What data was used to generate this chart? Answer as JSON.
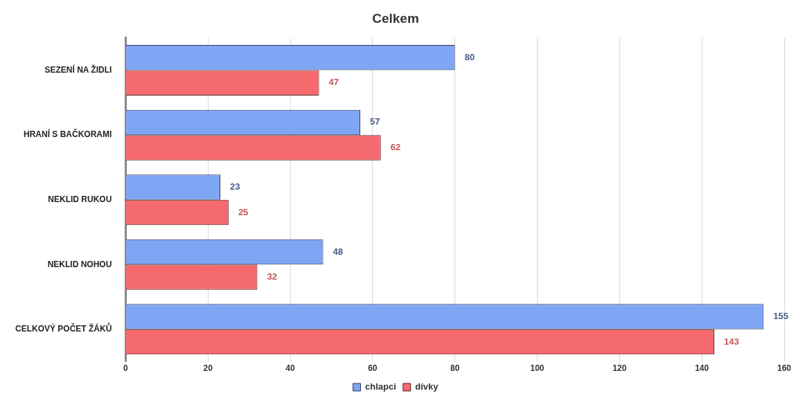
{
  "chart_data": {
    "type": "bar",
    "title": "Celkem",
    "orientation": "horizontal",
    "categories": [
      "SEZENÍ NA ŽIDLI",
      "HRANÍ S BAČKORAMI",
      "NEKLID RUKOU",
      "NEKLID NOHOU",
      "CELKOVÝ POČET ŽÁKŮ"
    ],
    "series": [
      {
        "name": "chlapci",
        "color": "#7fa6f5",
        "values": [
          80,
          57,
          23,
          48,
          155
        ]
      },
      {
        "name": "dívky",
        "color": "#f56a6e",
        "values": [
          47,
          62,
          25,
          32,
          143
        ]
      }
    ],
    "xlim": [
      0,
      160
    ],
    "xticks": [
      0,
      20,
      40,
      60,
      80,
      100,
      120,
      140,
      160
    ],
    "grid": "x",
    "legend": "bottom",
    "data_labels": true
  }
}
